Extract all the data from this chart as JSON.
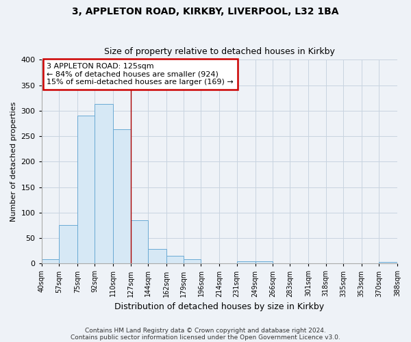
{
  "title1": "3, APPLETON ROAD, KIRKBY, LIVERPOOL, L32 1BA",
  "title2": "Size of property relative to detached houses in Kirkby",
  "xlabel": "Distribution of detached houses by size in Kirkby",
  "ylabel": "Number of detached properties",
  "footer1": "Contains HM Land Registry data © Crown copyright and database right 2024.",
  "footer2": "Contains public sector information licensed under the Open Government Licence v3.0.",
  "bin_edges": [
    40,
    57,
    75,
    92,
    110,
    127,
    144,
    162,
    179,
    196,
    214,
    231,
    249,
    266,
    283,
    301,
    318,
    335,
    353,
    370,
    388
  ],
  "bin_labels": [
    "40sqm",
    "57sqm",
    "75sqm",
    "92sqm",
    "110sqm",
    "127sqm",
    "144sqm",
    "162sqm",
    "179sqm",
    "196sqm",
    "214sqm",
    "231sqm",
    "249sqm",
    "266sqm",
    "283sqm",
    "301sqm",
    "318sqm",
    "335sqm",
    "353sqm",
    "370sqm",
    "388sqm"
  ],
  "counts": [
    8,
    76,
    291,
    313,
    263,
    85,
    28,
    15,
    8,
    0,
    0,
    5,
    4,
    0,
    0,
    0,
    0,
    0,
    0,
    3
  ],
  "bar_facecolor": "#d6e8f5",
  "bar_edgecolor": "#6aaad4",
  "vline_x": 127,
  "vline_color": "#aa0000",
  "annotation_line1": "3 APPLETON ROAD: 125sqm",
  "annotation_line2": "← 84% of detached houses are smaller (924)",
  "annotation_line3": "15% of semi-detached houses are larger (169) →",
  "annotation_box_edgecolor": "#cc0000",
  "annotation_box_facecolor": "#ffffff",
  "ylim": [
    0,
    400
  ],
  "yticks": [
    0,
    50,
    100,
    150,
    200,
    250,
    300,
    350,
    400
  ],
  "background_color": "#eef2f7",
  "plot_background": "#eef2f7",
  "grid_color": "#c8d4e0"
}
